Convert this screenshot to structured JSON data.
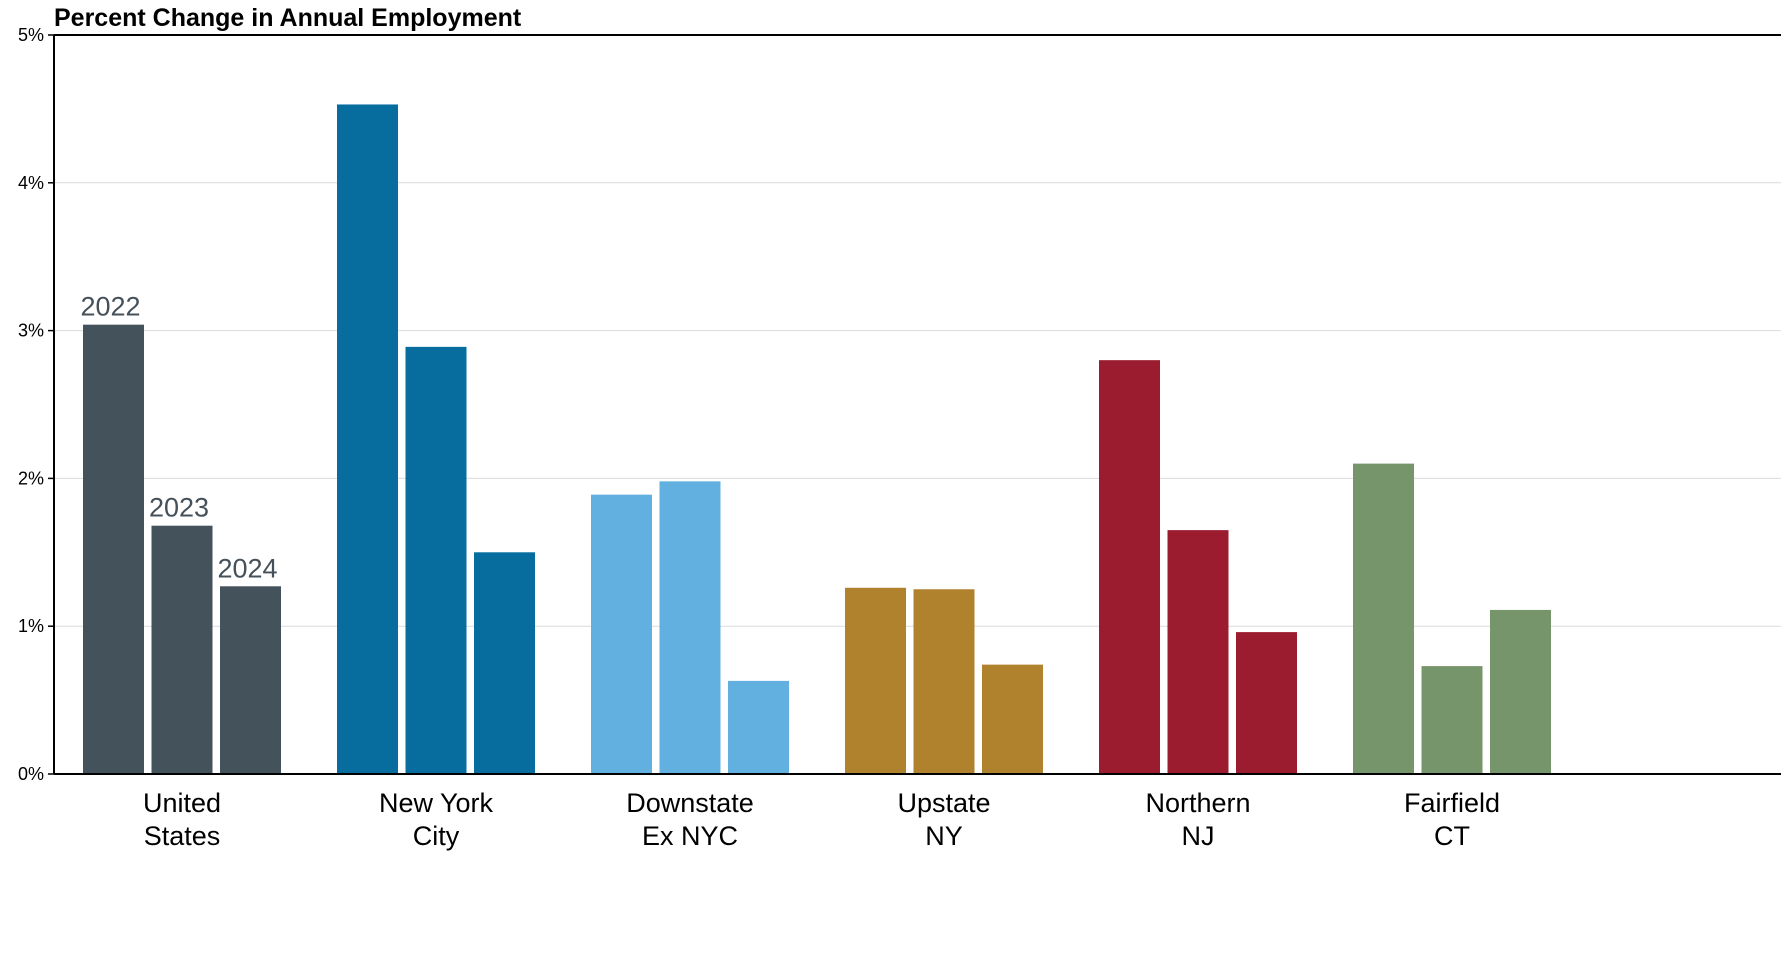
{
  "chart_data": {
    "type": "bar",
    "title": "Percent Change in Annual Employment",
    "xlabel": "",
    "ylabel": "",
    "ylim": [
      0,
      5
    ],
    "yticks": [
      "0%",
      "1%",
      "2%",
      "3%",
      "4%",
      "5%"
    ],
    "grid": true,
    "legend": "inline labels on first group",
    "categories": [
      [
        "United",
        "States"
      ],
      [
        "New York",
        "City"
      ],
      [
        "Downstate",
        "Ex NYC"
      ],
      [
        "Upstate",
        "NY"
      ],
      [
        "Northern",
        "NJ"
      ],
      [
        "Fairfield",
        "CT"
      ]
    ],
    "category_colors": [
      "#44525c",
      "#066d9e",
      "#62b0e0",
      "#b0822e",
      "#9b1c2e",
      "#76956a"
    ],
    "series": [
      {
        "name": "2022",
        "values": [
          3.04,
          4.53,
          1.89,
          1.26,
          2.8,
          2.1
        ]
      },
      {
        "name": "2023",
        "values": [
          1.68,
          2.89,
          1.98,
          1.25,
          1.65,
          0.73
        ]
      },
      {
        "name": "2024",
        "values": [
          1.27,
          1.5,
          0.63,
          0.74,
          0.96,
          1.11
        ]
      }
    ]
  }
}
